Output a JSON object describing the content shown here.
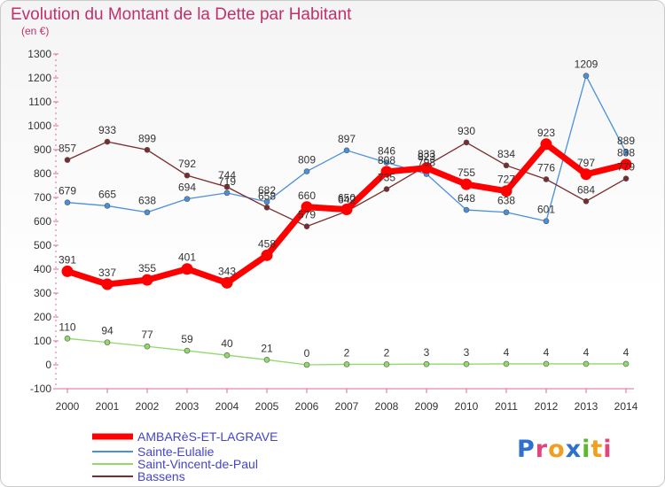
{
  "chart_data": {
    "type": "line",
    "title": "Evolution du Montant de la Dette par Habitant",
    "subtitle": "(en €)",
    "x": [
      "2000",
      "2001",
      "2002",
      "2003",
      "2004",
      "2005",
      "2006",
      "2007",
      "2008",
      "2009",
      "2010",
      "2011",
      "2012",
      "2013",
      "2014"
    ],
    "ylim": [
      -100,
      1300
    ],
    "yticks": [
      -100,
      0,
      100,
      200,
      300,
      400,
      500,
      600,
      700,
      800,
      900,
      1000,
      1100,
      1200,
      1300
    ],
    "grid": false,
    "legend_position": "bottom-left",
    "series": [
      {
        "name": "AMBARèS-ET-LAGRAVE",
        "color": "#ff0000",
        "values": [
          391,
          337,
          355,
          401,
          343,
          458,
          660,
          650,
          808,
          823,
          755,
          727,
          923,
          797,
          838
        ]
      },
      {
        "name": "Sainte-Eulalie",
        "color": "#4a90d9",
        "values": [
          679,
          665,
          638,
          694,
          719,
          682,
          809,
          897,
          846,
          798,
          648,
          638,
          601,
          1209,
          889
        ]
      },
      {
        "name": "Saint-Vincent-de-Paul",
        "color": "#90d96a",
        "values": [
          110,
          94,
          77,
          59,
          40,
          21,
          0,
          2,
          2,
          3,
          3,
          4,
          4,
          4,
          4
        ]
      },
      {
        "name": "Bassens",
        "color": "#7a2b2b",
        "values": [
          857,
          933,
          899,
          792,
          744,
          658,
          579,
          642,
          735,
          833,
          930,
          834,
          776,
          684,
          779
        ]
      }
    ]
  },
  "brand": {
    "logo_text": "Proxiti"
  }
}
